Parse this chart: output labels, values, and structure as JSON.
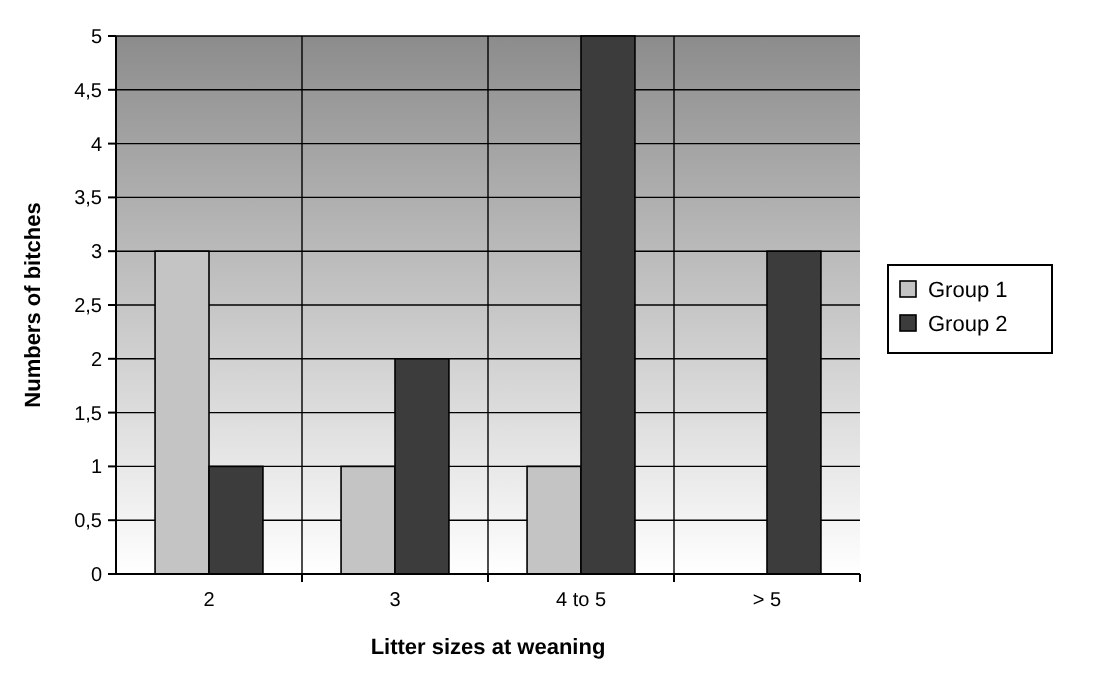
{
  "chart_data": {
    "type": "bar",
    "xlabel": "Litter sizes at weaning",
    "ylabel": "Numbers of bitches",
    "categories": [
      "2",
      "3",
      "4 to 5",
      "> 5"
    ],
    "series": [
      {
        "name": "Group 1",
        "color": "#c4c4c4",
        "values": [
          3,
          1,
          1,
          0
        ]
      },
      {
        "name": "Group 2",
        "color": "#3c3c3c",
        "values": [
          1,
          2,
          5,
          3
        ]
      }
    ],
    "ylim": [
      0,
      5
    ],
    "yticks": [
      0,
      {
        "value": 0.5,
        "label": "0,5"
      },
      1,
      {
        "value": 1.5,
        "label": "1,5"
      },
      2,
      {
        "value": 2.5,
        "label": "2,5"
      },
      3,
      {
        "value": 3.5,
        "label": "3,5"
      },
      4,
      {
        "value": 4.5,
        "label": "4,5"
      },
      5
    ],
    "grid": "y",
    "legend": "right"
  }
}
